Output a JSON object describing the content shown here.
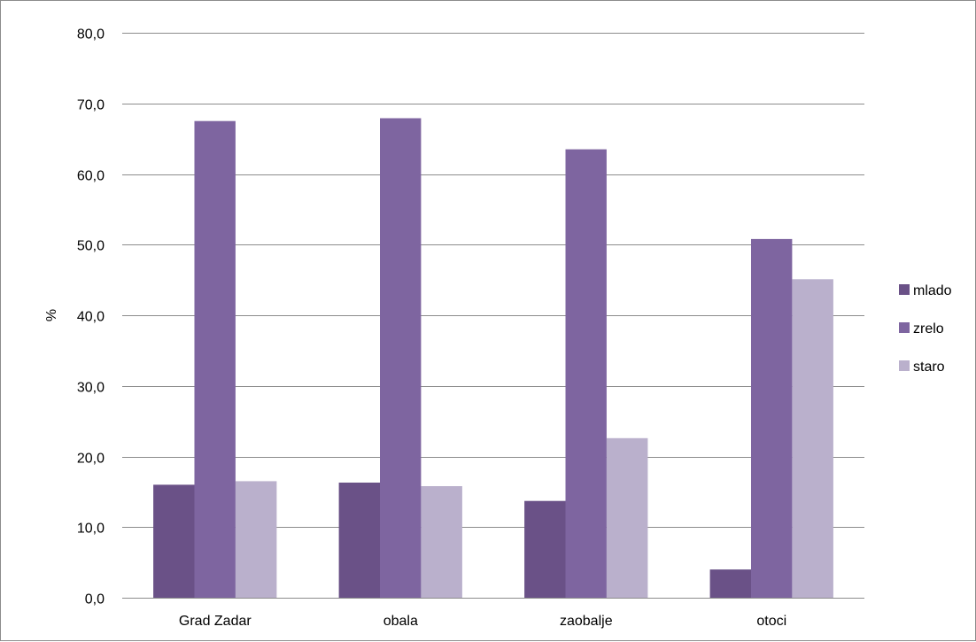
{
  "chart_data": {
    "type": "bar",
    "categories": [
      "Grad Zadar",
      "obala",
      "zaobalje",
      "otoci"
    ],
    "series": [
      {
        "name": "mlado",
        "values": [
          16.0,
          16.3,
          13.7,
          4.0
        ],
        "color": "#6a5187"
      },
      {
        "name": "zrelo",
        "values": [
          67.5,
          67.9,
          63.5,
          50.8
        ],
        "color": "#7e65a0"
      },
      {
        "name": "staro",
        "values": [
          16.5,
          15.8,
          22.6,
          45.1
        ],
        "color": "#bab0cc"
      }
    ],
    "ylabel": "%",
    "ylim": [
      0,
      80
    ],
    "yticks": [
      "0,0",
      "10,0",
      "20,0",
      "30,0",
      "40,0",
      "50,0",
      "60,0",
      "70,0",
      "80,0"
    ],
    "grid": true,
    "legend_position": "right"
  }
}
